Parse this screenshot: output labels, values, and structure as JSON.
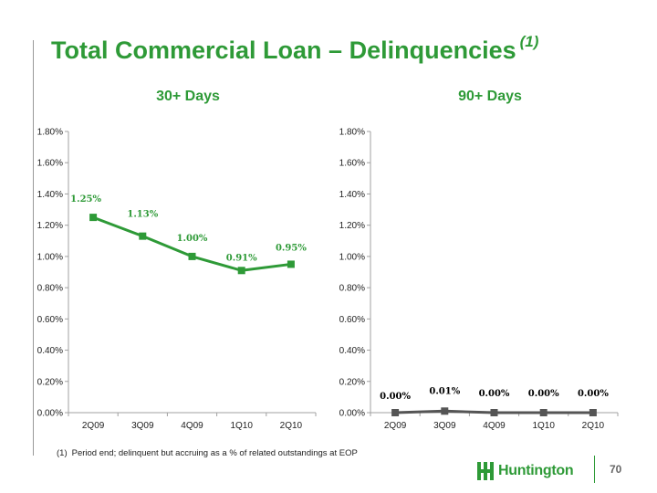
{
  "slide": {
    "title": "Total Commercial Loan – Delinquencies",
    "title_note": "(1)",
    "footnote_marker": "(1)",
    "footnote_text": "Period end; delinquent but accruing as a % of related outstandings at EOP",
    "logo_text": "Huntington",
    "page_number": "70"
  },
  "colors": {
    "title": "#2e9a37",
    "series_30": "#2e9a37",
    "series_90": "#555555",
    "axis": "#a0a0a0"
  },
  "chart_data": [
    {
      "type": "line",
      "title": "30+ Days",
      "categories": [
        "2Q09",
        "3Q09",
        "4Q09",
        "1Q10",
        "2Q10"
      ],
      "values": [
        1.25,
        1.13,
        1.0,
        0.91,
        0.95
      ],
      "data_labels": [
        "1.25%",
        "1.13%",
        "1.00%",
        "0.91%",
        "0.95%"
      ],
      "ylim": [
        0,
        1.8
      ],
      "yticks": [
        0,
        0.2,
        0.4,
        0.6,
        0.8,
        1.0,
        1.2,
        1.4,
        1.6,
        1.8
      ],
      "ytick_labels": [
        "0.00%",
        "0.20%",
        "0.40%",
        "0.60%",
        "0.80%",
        "1.00%",
        "1.20%",
        "1.40%",
        "1.60%",
        "1.80%"
      ],
      "grid": false,
      "legend": "none"
    },
    {
      "type": "line",
      "title": "90+ Days",
      "categories": [
        "2Q09",
        "3Q09",
        "4Q09",
        "1Q10",
        "2Q10"
      ],
      "values": [
        0.0,
        0.01,
        0.0,
        0.0,
        0.0
      ],
      "data_labels": [
        "0.00%",
        "0.01%",
        "0.00%",
        "0.00%",
        "0.00%"
      ],
      "ylim": [
        0,
        1.8
      ],
      "yticks": [
        0,
        0.2,
        0.4,
        0.6,
        0.8,
        1.0,
        1.2,
        1.4,
        1.6,
        1.8
      ],
      "ytick_labels": [
        "0.00%",
        "0.20%",
        "0.40%",
        "0.60%",
        "0.80%",
        "1.00%",
        "1.20%",
        "1.40%",
        "1.60%",
        "1.80%"
      ],
      "grid": false,
      "legend": "none"
    }
  ]
}
